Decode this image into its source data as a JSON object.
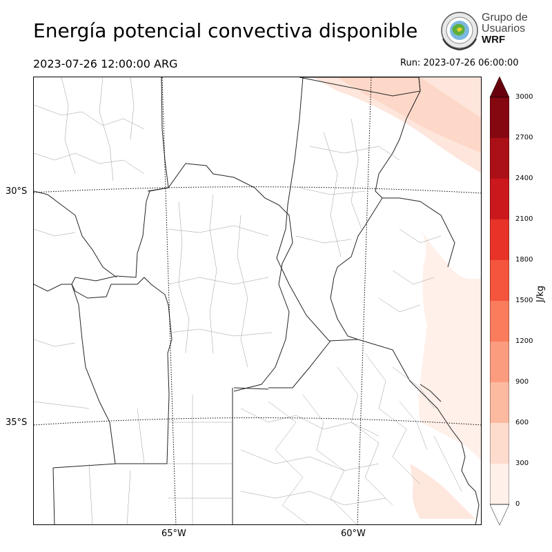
{
  "header": {
    "title": "Energía potencial convectiva disponible",
    "valid_time": "2023-07-26 12:00:00 ARG",
    "run_time": "Run: 2023-07-26 06:00:00"
  },
  "logo": {
    "line1": "Grupo de",
    "line2": "Usuarios",
    "line3": "WRF"
  },
  "map": {
    "lat_labels": [
      "30°S",
      "35°S"
    ],
    "lon_labels": [
      "65°W",
      "60°W"
    ]
  },
  "colorbar": {
    "label": "J/kg",
    "ticks": [
      "0",
      "300",
      "600",
      "900",
      "1200",
      "1500",
      "1800",
      "2100",
      "2400",
      "2700",
      "3000"
    ],
    "colors": [
      "#fff0e9",
      "#fedccd",
      "#fcbba1",
      "#fc9c7f",
      "#fb7c5c",
      "#f5553d",
      "#e83428",
      "#cb181d",
      "#ab1016",
      "#850811"
    ],
    "extend_color": "#67000d"
  }
}
